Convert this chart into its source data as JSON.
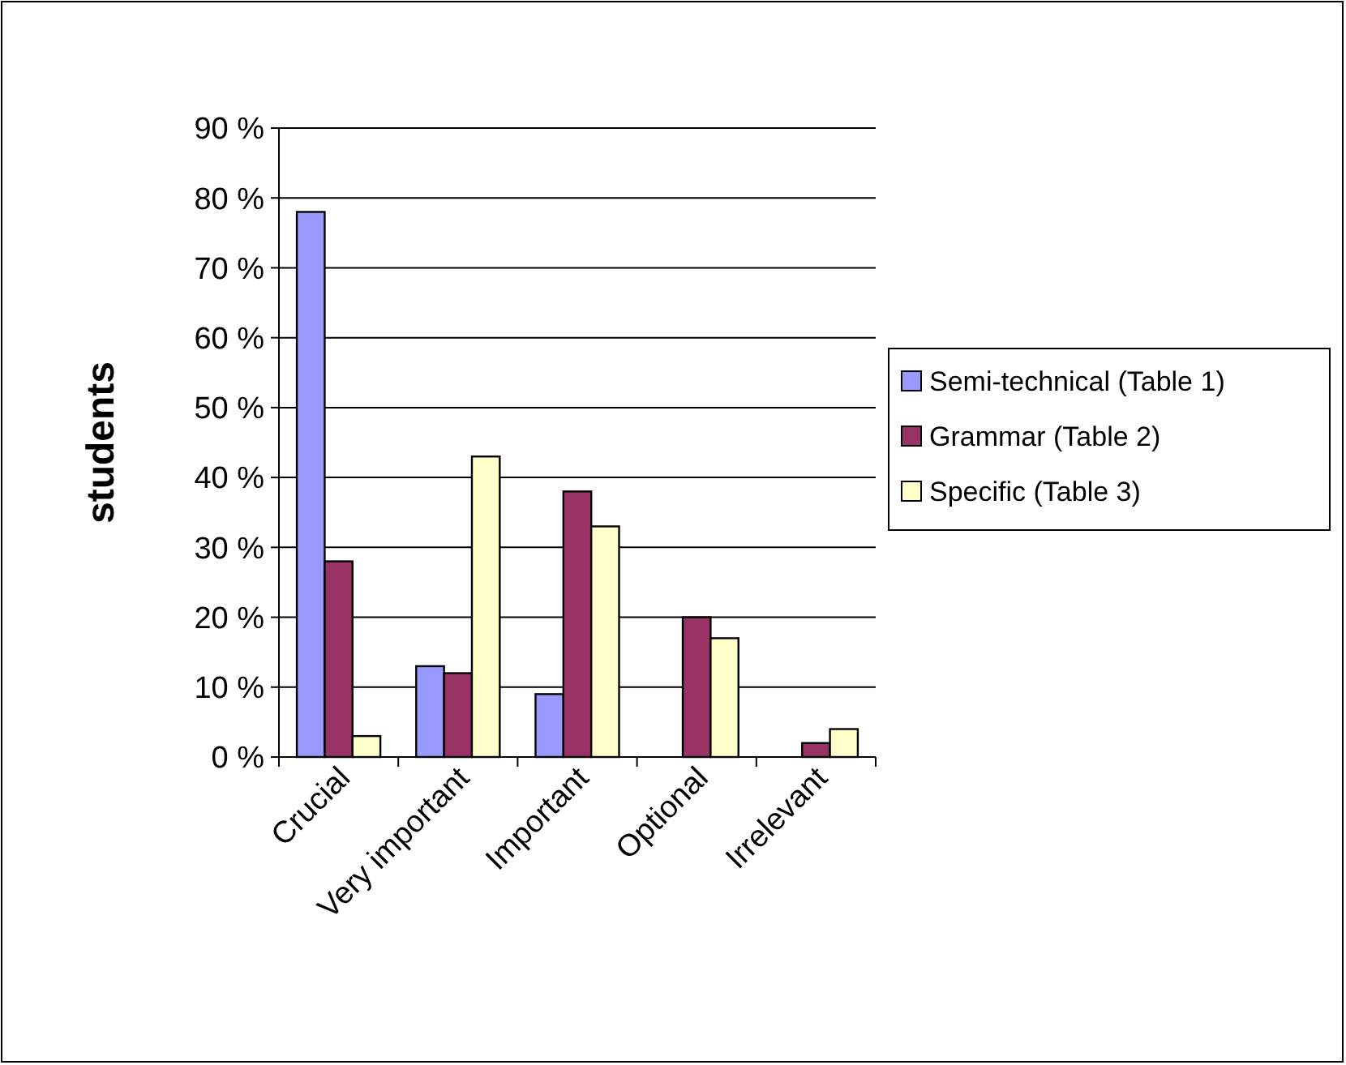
{
  "chart_data": {
    "type": "bar",
    "ylabel": "students",
    "categories": [
      "Crucial",
      "Very important",
      "Important",
      "Optional",
      "Irrelevant"
    ],
    "series": [
      {
        "name": "Semi-technical (Table 1)",
        "color": "#9999ff",
        "values": [
          78,
          13,
          9,
          0,
          0
        ]
      },
      {
        "name": "Grammar (Table 2)",
        "color": "#993366",
        "values": [
          28,
          12,
          38,
          20,
          2
        ]
      },
      {
        "name": "Specific (Table 3)",
        "color": "#ffffcc",
        "values": [
          3,
          43,
          33,
          17,
          4
        ]
      }
    ],
    "ylim": [
      0,
      90
    ],
    "yticks": [
      {
        "value": 0,
        "label": "0 %"
      },
      {
        "value": 10,
        "label": "10 %"
      },
      {
        "value": 20,
        "label": "20 %"
      },
      {
        "value": 30,
        "label": "30 %"
      },
      {
        "value": 40,
        "label": "40 %"
      },
      {
        "value": 50,
        "label": "50 %"
      },
      {
        "value": 60,
        "label": "60 %"
      },
      {
        "value": 70,
        "label": "70 %"
      },
      {
        "value": 80,
        "label": "80 %"
      },
      {
        "value": 90,
        "label": "90 %"
      }
    ],
    "grid": "y",
    "legend": "right"
  }
}
